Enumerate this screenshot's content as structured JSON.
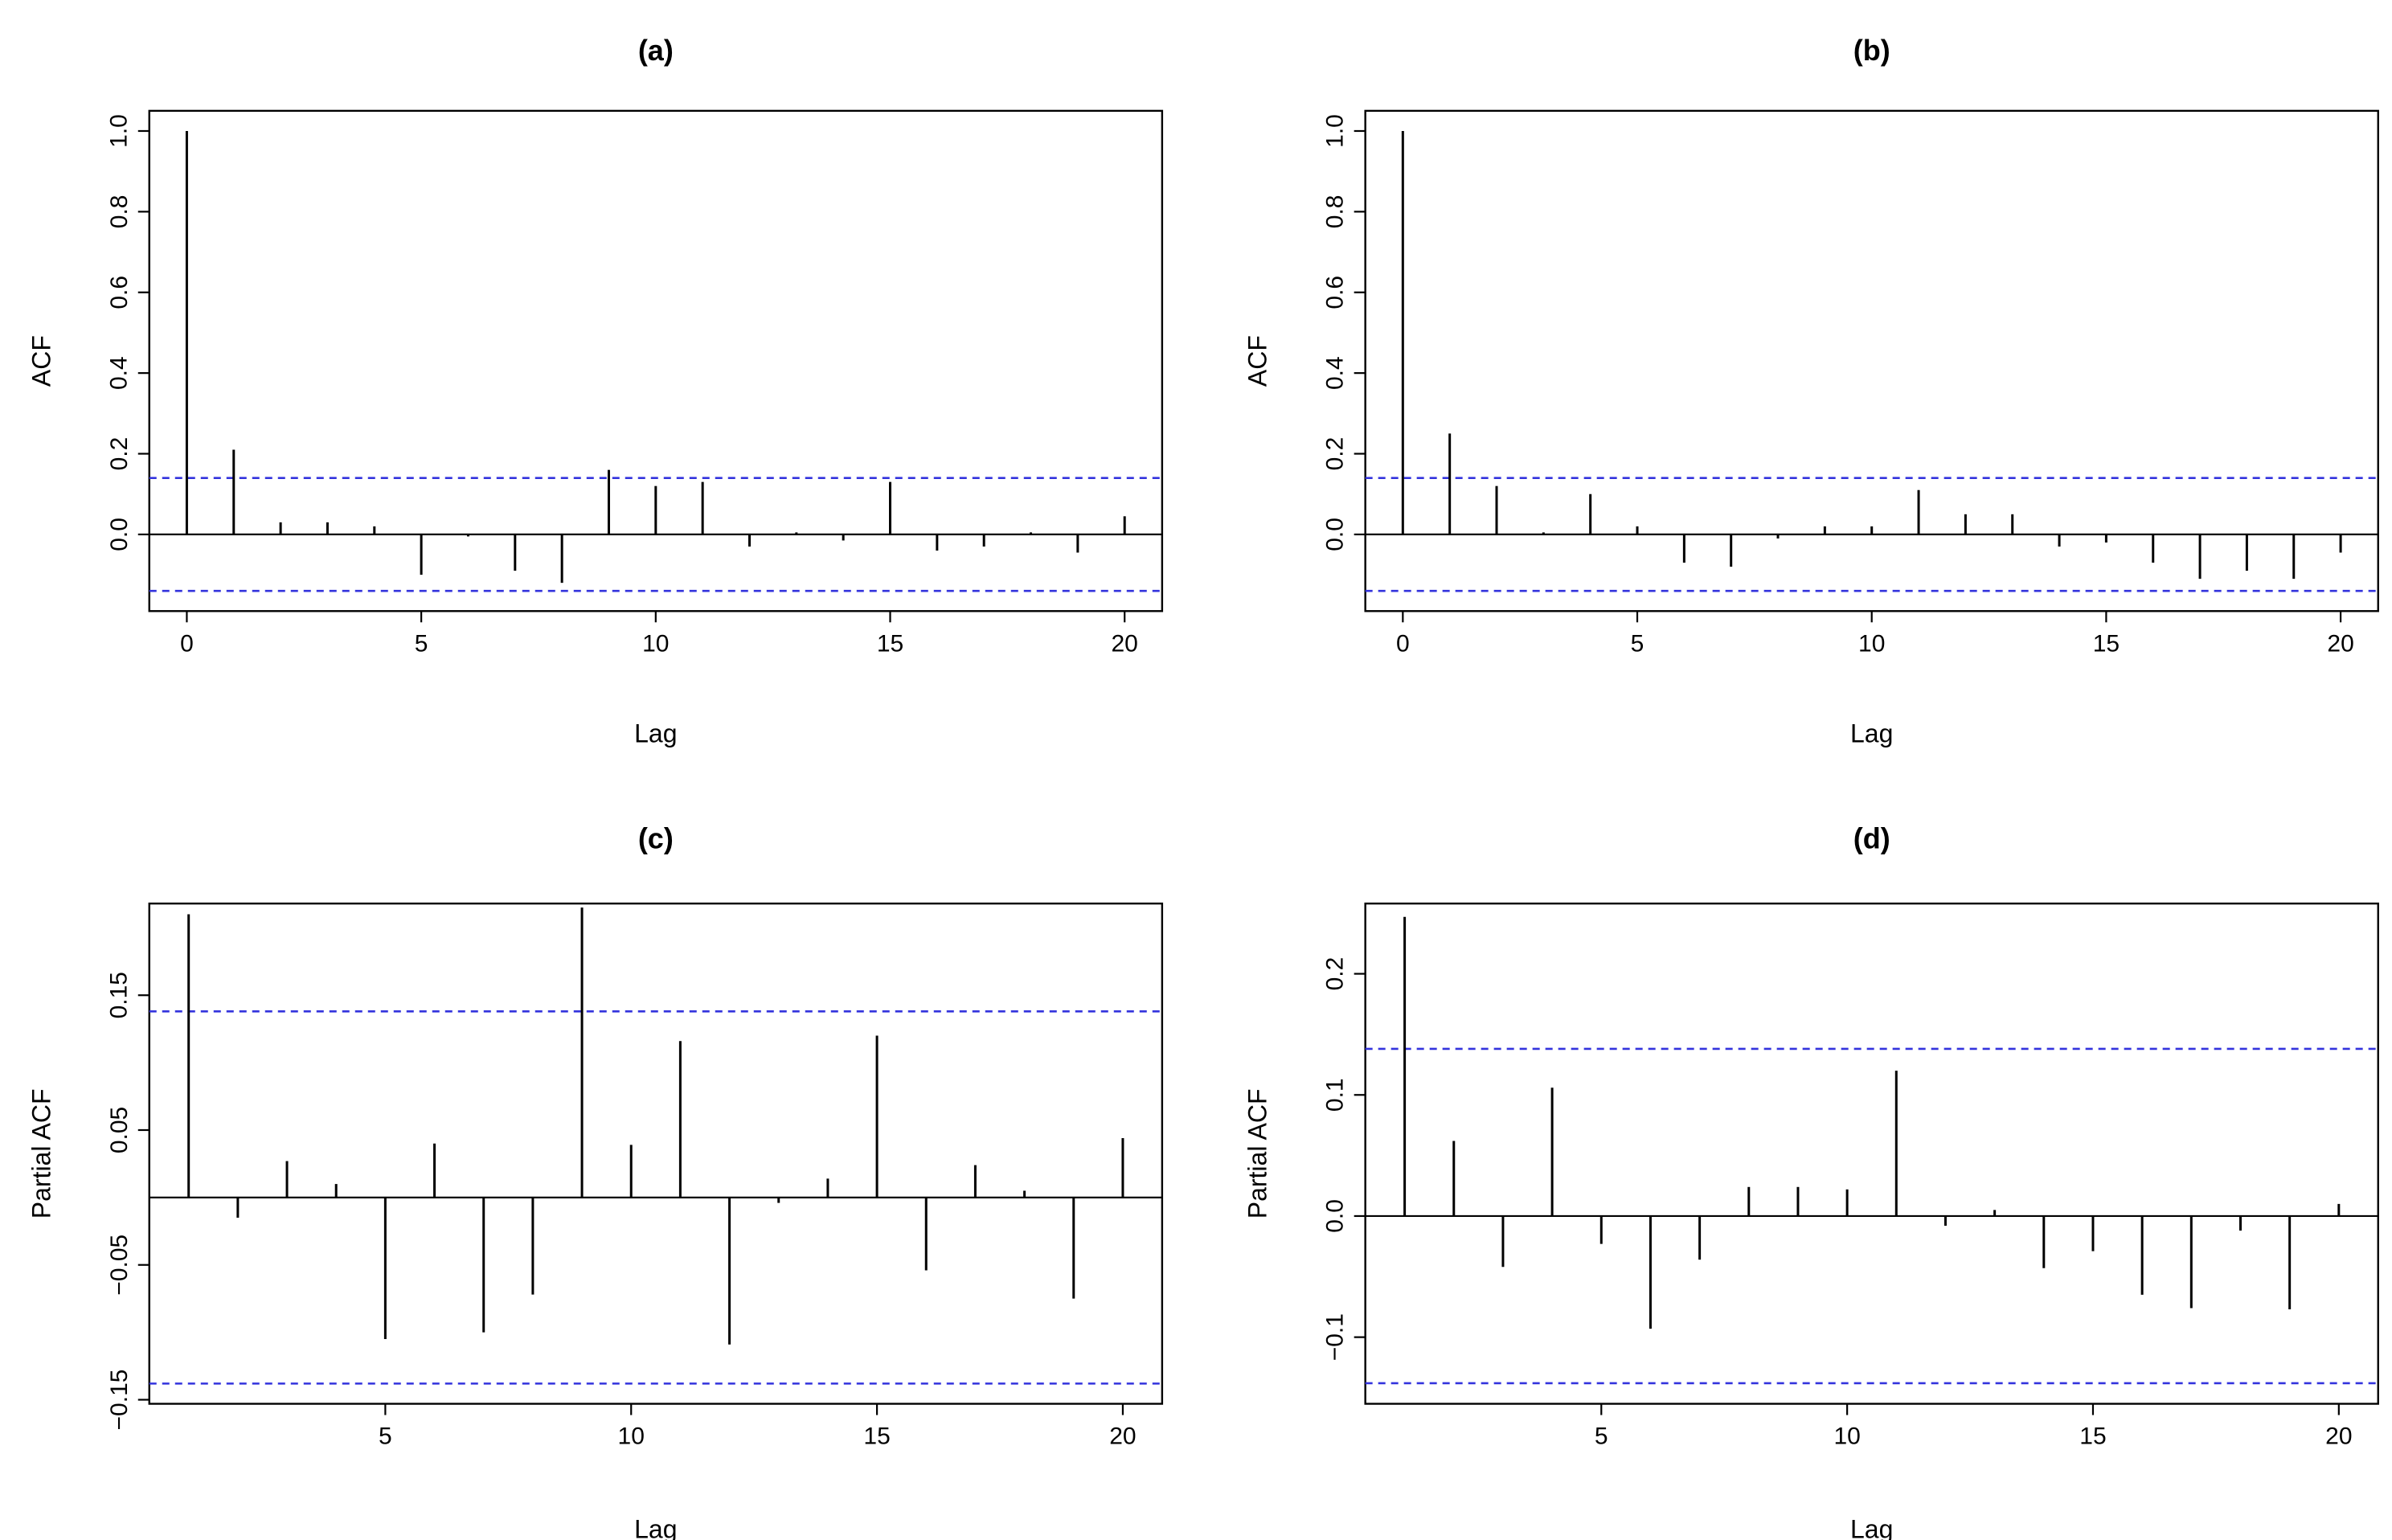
{
  "chart_data": [
    {
      "id": "a",
      "type": "bar",
      "title": "(a)",
      "xlabel": "Lag",
      "ylabel": "ACF",
      "xlim": [
        -0.8,
        20.8
      ],
      "ylim": [
        -0.19,
        1.05
      ],
      "xticks": [
        0,
        5,
        10,
        15,
        20
      ],
      "xtick_labels": [
        "0",
        "5",
        "10",
        "15",
        "20"
      ],
      "yticks": [
        0.0,
        0.2,
        0.4,
        0.6,
        0.8,
        1.0
      ],
      "ytick_labels": [
        "0.0",
        "0.2",
        "0.4",
        "0.6",
        "0.8",
        "1.0"
      ],
      "lags": [
        0,
        1,
        2,
        3,
        4,
        5,
        6,
        7,
        8,
        9,
        10,
        11,
        12,
        13,
        14,
        15,
        16,
        17,
        18,
        19,
        20
      ],
      "values": [
        1.0,
        0.21,
        0.03,
        0.03,
        0.02,
        -0.1,
        -0.005,
        -0.09,
        -0.12,
        0.16,
        0.12,
        0.13,
        -0.03,
        0.005,
        -0.015,
        0.13,
        -0.04,
        -0.03,
        0.005,
        -0.045,
        0.045
      ],
      "conf_bound": 0.14,
      "conf_color": "#3333dd"
    },
    {
      "id": "b",
      "type": "bar",
      "title": "(b)",
      "xlabel": "Lag",
      "ylabel": "ACF",
      "xlim": [
        -0.8,
        20.8
      ],
      "ylim": [
        -0.19,
        1.05
      ],
      "xticks": [
        0,
        5,
        10,
        15,
        20
      ],
      "xtick_labels": [
        "0",
        "5",
        "10",
        "15",
        "20"
      ],
      "yticks": [
        0.0,
        0.2,
        0.4,
        0.6,
        0.8,
        1.0
      ],
      "ytick_labels": [
        "0.0",
        "0.2",
        "0.4",
        "0.6",
        "0.8",
        "1.0"
      ],
      "lags": [
        0,
        1,
        2,
        3,
        4,
        5,
        6,
        7,
        8,
        9,
        10,
        11,
        12,
        13,
        14,
        15,
        16,
        17,
        18,
        19,
        20
      ],
      "values": [
        1.0,
        0.25,
        0.12,
        0.005,
        0.1,
        0.02,
        -0.07,
        -0.08,
        -0.01,
        0.02,
        0.02,
        0.11,
        0.05,
        0.05,
        -0.03,
        -0.02,
        -0.07,
        -0.11,
        -0.09,
        -0.11,
        -0.045
      ],
      "conf_bound": 0.14,
      "conf_color": "#3333dd"
    },
    {
      "id": "c",
      "type": "bar",
      "title": "(c)",
      "xlabel": "Lag",
      "ylabel": "Partial ACF",
      "xlim": [
        0.2,
        20.8
      ],
      "ylim": [
        -0.153,
        0.218
      ],
      "xticks": [
        5,
        10,
        15,
        20
      ],
      "xtick_labels": [
        "5",
        "10",
        "15",
        "20"
      ],
      "yticks": [
        -0.15,
        -0.05,
        0.05,
        0.15
      ],
      "ytick_labels": [
        "−0.15",
        "−0.05",
        "0.05",
        "0.15"
      ],
      "lags": [
        1,
        2,
        3,
        4,
        5,
        6,
        7,
        8,
        9,
        10,
        11,
        12,
        13,
        14,
        15,
        16,
        17,
        18,
        19,
        20
      ],
      "values": [
        0.21,
        -0.015,
        0.027,
        0.01,
        -0.105,
        0.04,
        -0.1,
        -0.072,
        0.215,
        0.039,
        0.116,
        -0.109,
        -0.004,
        0.014,
        0.12,
        -0.054,
        0.024,
        0.005,
        -0.075,
        0.044
      ],
      "conf_bound": 0.138,
      "conf_color": "#3333dd"
    },
    {
      "id": "d",
      "type": "bar",
      "title": "(d)",
      "xlabel": "Lag",
      "ylabel": "Partial ACF",
      "xlim": [
        0.2,
        20.8
      ],
      "ylim": [
        -0.155,
        0.258
      ],
      "xticks": [
        5,
        10,
        15,
        20
      ],
      "xtick_labels": [
        "5",
        "10",
        "15",
        "20"
      ],
      "yticks": [
        -0.1,
        0.0,
        0.1,
        0.2
      ],
      "ytick_labels": [
        "−0.1",
        "0.0",
        "0.1",
        "0.2"
      ],
      "lags": [
        1,
        2,
        3,
        4,
        5,
        6,
        7,
        8,
        9,
        10,
        11,
        12,
        13,
        14,
        15,
        16,
        17,
        18,
        19,
        20
      ],
      "values": [
        0.247,
        0.062,
        -0.042,
        0.106,
        -0.023,
        -0.093,
        -0.036,
        0.024,
        0.024,
        0.022,
        0.12,
        -0.008,
        0.005,
        -0.043,
        -0.029,
        -0.065,
        -0.076,
        -0.012,
        -0.077,
        0.01
      ],
      "conf_bound": 0.138,
      "conf_color": "#3333dd"
    }
  ]
}
